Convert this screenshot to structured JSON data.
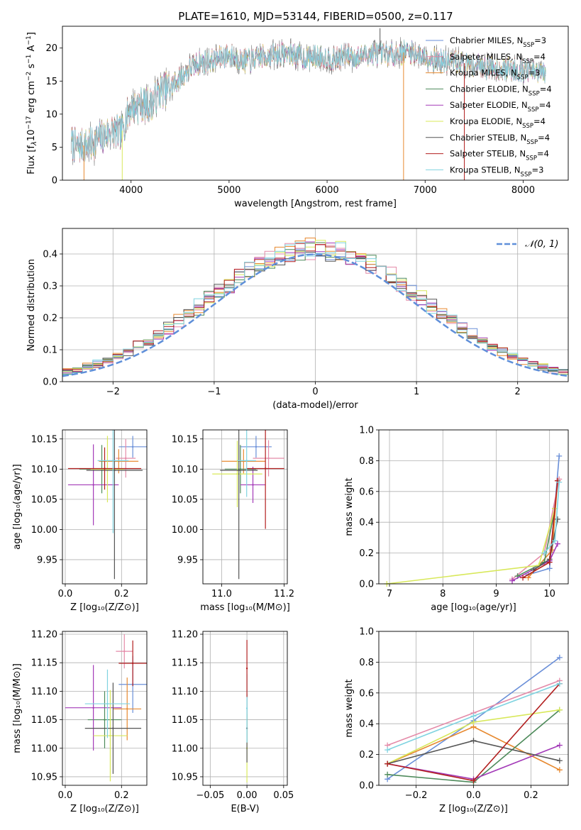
{
  "title": "PLATE=1610, MJD=53144, FIBERID=0500, z=0.117",
  "colors": {
    "chabrier_miles": "#6a8fd8",
    "salpeter_miles": "#e48aa8",
    "kroupa_miles": "#e7892f",
    "chabrier_elodie": "#4d8a5a",
    "salpeter_elodie": "#a33ab8",
    "kroupa_elodie": "#d8e85a",
    "chabrier_stelib": "#555555",
    "salpeter_stelib": "#b21f1f",
    "kroupa_stelib": "#7fd3e0",
    "gauss": "#5f8fd9",
    "grid": "#b0b0b0"
  },
  "chart_data": [
    {
      "type": "line",
      "id": "spectrum",
      "xlabel": "wavelength [Angstrom, rest frame]",
      "ylabel_parts": [
        "Flux [f",
        "λ",
        "10",
        "−17",
        " erg cm",
        "−2",
        " s",
        "−1",
        " A",
        "−1",
        "]"
      ],
      "xlim": [
        3300,
        8460
      ],
      "ylim": [
        0,
        23.3
      ],
      "xticks": [
        4000,
        5000,
        6000,
        7000,
        8000
      ],
      "yticks": [
        0,
        5,
        10,
        15,
        20
      ],
      "grid": false,
      "legend": "top-right",
      "spectrum_outline": [
        [
          3390,
          5.8
        ],
        [
          3450,
          5.0
        ],
        [
          3600,
          5.5
        ],
        [
          3700,
          6.5
        ],
        [
          3800,
          7.5
        ],
        [
          3900,
          7.0
        ],
        [
          3950,
          9.5
        ],
        [
          4000,
          11.0
        ],
        [
          4100,
          11.5
        ],
        [
          4200,
          11.5
        ],
        [
          4300,
          13.5
        ],
        [
          4400,
          14.0
        ],
        [
          4500,
          15.5
        ],
        [
          4600,
          17.0
        ],
        [
          4700,
          17.8
        ],
        [
          4800,
          18.0
        ],
        [
          4900,
          18.5
        ],
        [
          5000,
          19.0
        ],
        [
          5100,
          18.3
        ],
        [
          5200,
          18.0
        ],
        [
          5300,
          18.6
        ],
        [
          5400,
          18.8
        ],
        [
          5500,
          19.0
        ],
        [
          5600,
          19.2
        ],
        [
          5700,
          18.8
        ],
        [
          5800,
          18.5
        ],
        [
          5900,
          18.7
        ],
        [
          6000,
          18.5
        ],
        [
          6100,
          18.3
        ],
        [
          6200,
          19.0
        ],
        [
          6300,
          18.6
        ],
        [
          6400,
          19.0
        ],
        [
          6500,
          19.2
        ],
        [
          6600,
          19.0
        ],
        [
          6700,
          19.1
        ],
        [
          6800,
          19.4
        ],
        [
          6900,
          19.2
        ],
        [
          7000,
          18.7
        ],
        [
          7100,
          18.3
        ],
        [
          7200,
          17.8
        ],
        [
          7300,
          18.0
        ],
        [
          7400,
          17.7
        ],
        [
          7500,
          17.4
        ],
        [
          7600,
          17.2
        ],
        [
          7700,
          17.0
        ],
        [
          7800,
          16.8
        ],
        [
          7900,
          16.9
        ],
        [
          8000,
          16.6
        ],
        [
          8100,
          16.4
        ],
        [
          8230,
          16.0
        ]
      ],
      "dropouts": [
        [
          3520,
          0
        ],
        [
          3910,
          0
        ],
        [
          6780,
          0
        ],
        [
          7400,
          0
        ],
        [
          6540,
          23
        ]
      ],
      "series": [
        {
          "label": "Chabrier MILES, N",
          "n_ssp": "3",
          "color_key": "chabrier_miles"
        },
        {
          "label": "Salpeter MILES, N",
          "n_ssp": "4",
          "color_key": "salpeter_miles"
        },
        {
          "label": "Kroupa MILES, N",
          "n_ssp": "3",
          "color_key": "kroupa_miles"
        },
        {
          "label": "Chabrier ELODIE, N",
          "n_ssp": "4",
          "color_key": "chabrier_elodie"
        },
        {
          "label": "Salpeter ELODIE, N",
          "n_ssp": "4",
          "color_key": "salpeter_elodie"
        },
        {
          "label": "Kroupa ELODIE, N",
          "n_ssp": "4",
          "color_key": "kroupa_elodie"
        },
        {
          "label": "Chabrier STELIB, N",
          "n_ssp": "4",
          "color_key": "chabrier_stelib"
        },
        {
          "label": "Salpeter STELIB, N",
          "n_ssp": "4",
          "color_key": "salpeter_stelib"
        },
        {
          "label": "Kroupa STELIB, N",
          "n_ssp": "3",
          "color_key": "kroupa_stelib"
        }
      ],
      "n_subscript": "SSP"
    },
    {
      "type": "histogram",
      "id": "residuals",
      "xlabel": "(data-model)/error",
      "ylabel": "Normed distribution",
      "xlim": [
        -2.5,
        2.5
      ],
      "ylim": [
        0,
        0.48
      ],
      "xticks": [
        -2,
        -1,
        0,
        1,
        2
      ],
      "xtick_labels": [
        "−2",
        "−1",
        "0",
        "1",
        "2"
      ],
      "yticks": [
        0.0,
        0.1,
        0.2,
        0.3,
        0.4
      ],
      "ytick_labels": [
        "0.0",
        "0.1",
        "0.2",
        "0.3",
        "0.4"
      ],
      "grid": true,
      "bin_width": 0.1,
      "legend": "top-right",
      "gauss_label": "𝒩(0, 1)"
    },
    {
      "type": "scatter",
      "id": "age_vs_Z",
      "xlabel": "Z [log₁₀(Z/Z⊙)]",
      "ylabel": "age  [log₁₀(age/yr)]",
      "xlim": [
        -0.01,
        0.29
      ],
      "ylim": [
        9.91,
        10.165
      ],
      "xticks": [
        0.0,
        0.2
      ],
      "xtick_labels": [
        "0.0",
        "0.2"
      ],
      "yticks": [
        9.95,
        10.0,
        10.05,
        10.1,
        10.15
      ],
      "ytick_labels": [
        "9.95",
        "10.00",
        "10.05",
        "10.10",
        "10.15"
      ],
      "grid": true,
      "points": [
        {
          "color_key": "chabrier_miles",
          "x": 0.24,
          "xerr": 0.05,
          "y": 10.137,
          "yerr": 0.018
        },
        {
          "color_key": "salpeter_miles",
          "x": 0.215,
          "xerr": 0.035,
          "y": 10.118,
          "yerr": 0.032
        },
        {
          "color_key": "kroupa_miles",
          "x": 0.19,
          "xerr": 0.07,
          "y": 10.113,
          "yerr": 0.02
        },
        {
          "color_key": "chabrier_elodie",
          "x": 0.13,
          "xerr": 0.08,
          "y": 10.1,
          "yerr": 0.04
        },
        {
          "color_key": "salpeter_elodie",
          "x": 0.1,
          "xerr": 0.09,
          "y": 10.074,
          "yerr": 0.067
        },
        {
          "color_key": "kroupa_elodie",
          "x": 0.15,
          "xerr": 0.06,
          "y": 10.1,
          "yerr": 0.055
        },
        {
          "color_key": "chabrier_stelib",
          "x": 0.175,
          "xerr": 0.1,
          "y": 10.098,
          "yerr": 0.18
        },
        {
          "color_key": "salpeter_stelib",
          "x": 0.14,
          "xerr": 0.13,
          "y": 10.101,
          "yerr": 0.035
        },
        {
          "color_key": "kroupa_stelib",
          "x": 0.17,
          "xerr": 0.055,
          "y": 10.114,
          "yerr": 0.12
        }
      ]
    },
    {
      "type": "scatter",
      "id": "age_vs_mass",
      "xlabel": "mass [log₁₀(M/M⊙)]",
      "xlim": [
        10.94,
        11.21
      ],
      "ylim": [
        9.91,
        10.165
      ],
      "xticks": [
        11.0,
        11.2
      ],
      "xtick_labels": [
        "11.0",
        "11.2"
      ],
      "yticks": [
        9.95,
        10.0,
        10.05,
        10.1,
        10.15
      ],
      "ytick_labels": [
        "9.95",
        "10.00",
        "10.05",
        "10.10",
        "10.15"
      ],
      "grid": true,
      "points": [
        {
          "color_key": "chabrier_miles",
          "x": 11.11,
          "xerr": 0.05,
          "y": 10.137,
          "yerr": 0.018
        },
        {
          "color_key": "salpeter_miles",
          "x": 11.15,
          "xerr": 0.05,
          "y": 10.118,
          "yerr": 0.03
        },
        {
          "color_key": "kroupa_miles",
          "x": 11.07,
          "xerr": 0.07,
          "y": 10.113,
          "yerr": 0.02
        },
        {
          "color_key": "chabrier_elodie",
          "x": 11.06,
          "xerr": 0.05,
          "y": 10.1,
          "yerr": 0.04
        },
        {
          "color_key": "salpeter_elodie",
          "x": 11.1,
          "xerr": 0.04,
          "y": 10.074,
          "yerr": 0.03
        },
        {
          "color_key": "kroupa_elodie",
          "x": 11.05,
          "xerr": 0.08,
          "y": 10.092,
          "yerr": 0.055
        },
        {
          "color_key": "chabrier_stelib",
          "x": 11.055,
          "xerr": 0.06,
          "y": 10.098,
          "yerr": 0.18
        },
        {
          "color_key": "salpeter_stelib",
          "x": 11.14,
          "xerr": 0.06,
          "y": 10.101,
          "yerr": 0.1
        },
        {
          "color_key": "kroupa_stelib",
          "x": 11.08,
          "xerr": 0.03,
          "y": 10.114,
          "yerr": 0.06
        }
      ]
    },
    {
      "type": "line",
      "id": "weight_vs_age",
      "xlabel": "age  [log₁₀(age/yr)]",
      "ylabel": "mass weight",
      "xlim": [
        6.8,
        10.35
      ],
      "ylim": [
        0,
        1
      ],
      "xticks": [
        7,
        8,
        9,
        10
      ],
      "yticks": [
        0.0,
        0.2,
        0.4,
        0.6,
        0.8,
        1.0
      ],
      "ytick_labels": [
        "0.0",
        "0.2",
        "0.4",
        "0.6",
        "0.8",
        "1.0"
      ],
      "grid": true,
      "series": [
        {
          "color_key": "chabrier_miles",
          "points": [
            [
              9.6,
              0.06
            ],
            [
              10.0,
              0.1
            ],
            [
              10.18,
              0.83
            ]
          ]
        },
        {
          "color_key": "salpeter_miles",
          "points": [
            [
              9.3,
              0.03
            ],
            [
              9.9,
              0.2
            ],
            [
              10.18,
              0.68
            ]
          ]
        },
        {
          "color_key": "kroupa_miles",
          "points": [
            [
              9.6,
              0.04
            ],
            [
              10.05,
              0.22
            ],
            [
              10.15,
              0.67
            ]
          ]
        },
        {
          "color_key": "chabrier_elodie",
          "points": [
            [
              9.4,
              0.05
            ],
            [
              9.9,
              0.14
            ],
            [
              10.1,
              0.49
            ]
          ]
        },
        {
          "color_key": "salpeter_elodie",
          "points": [
            [
              9.3,
              0.02
            ],
            [
              10.0,
              0.15
            ],
            [
              10.15,
              0.26
            ]
          ]
        },
        {
          "color_key": "kroupa_elodie",
          "points": [
            [
              6.95,
              0.0
            ],
            [
              9.8,
              0.12
            ],
            [
              10.1,
              0.49
            ]
          ]
        },
        {
          "color_key": "chabrier_stelib",
          "points": [
            [
              9.7,
              0.09
            ],
            [
              10.0,
              0.16
            ],
            [
              10.15,
              0.42
            ]
          ]
        },
        {
          "color_key": "salpeter_stelib",
          "points": [
            [
              9.5,
              0.04
            ],
            [
              10.0,
              0.14
            ],
            [
              10.15,
              0.67
            ]
          ]
        },
        {
          "color_key": "kroupa_stelib",
          "points": [
            [
              9.9,
              0.2
            ],
            [
              10.1,
              0.28
            ],
            [
              10.18,
              0.66
            ]
          ]
        }
      ]
    },
    {
      "type": "scatter",
      "id": "mass_vs_Z",
      "xlabel": "Z [log₁₀(Z/Z⊙)]",
      "ylabel": "mass [log₁₀(M/M⊙)]",
      "xlim": [
        -0.01,
        0.29
      ],
      "ylim": [
        10.935,
        11.205
      ],
      "xticks": [
        0.0,
        0.2
      ],
      "xtick_labels": [
        "0.0",
        "0.2"
      ],
      "yticks": [
        10.95,
        11.0,
        11.05,
        11.1,
        11.15,
        11.2
      ],
      "ytick_labels": [
        "10.95",
        "11.00",
        "11.05",
        "11.10",
        "11.15",
        "11.20"
      ],
      "grid": true,
      "points": [
        {
          "color_key": "chabrier_miles",
          "x": 0.24,
          "xerr": 0.05,
          "y": 11.112,
          "yerr": 0.05
        },
        {
          "color_key": "salpeter_miles",
          "x": 0.21,
          "xerr": 0.03,
          "y": 11.17,
          "yerr": 0.03
        },
        {
          "color_key": "kroupa_miles",
          "x": 0.22,
          "xerr": 0.05,
          "y": 11.069,
          "yerr": 0.055
        },
        {
          "color_key": "chabrier_elodie",
          "x": 0.14,
          "xerr": 0.06,
          "y": 11.05,
          "yerr": 0.05
        },
        {
          "color_key": "salpeter_elodie",
          "x": 0.1,
          "xerr": 0.1,
          "y": 11.071,
          "yerr": 0.075
        },
        {
          "color_key": "kroupa_elodie",
          "x": 0.16,
          "xerr": 0.06,
          "y": 11.022,
          "yerr": 0.08
        },
        {
          "color_key": "chabrier_stelib",
          "x": 0.17,
          "xerr": 0.1,
          "y": 11.035,
          "yerr": 0.08
        },
        {
          "color_key": "salpeter_stelib",
          "x": 0.24,
          "xerr": 0.05,
          "y": 11.149,
          "yerr": 0.04
        },
        {
          "color_key": "kroupa_stelib",
          "x": 0.15,
          "xerr": 0.08,
          "y": 11.078,
          "yerr": 0.06
        }
      ]
    },
    {
      "type": "scatter",
      "id": "mass_vs_ebv",
      "xlabel": "E(B-V)",
      "xlim": [
        -0.06,
        0.055
      ],
      "ylim": [
        10.935,
        11.205
      ],
      "xticks": [
        -0.05,
        0.0,
        0.05
      ],
      "xtick_labels": [
        "−0.05",
        "0.00",
        "0.05"
      ],
      "yticks": [
        10.95,
        11.0,
        11.05,
        11.1,
        11.15,
        11.2
      ],
      "ytick_labels": [
        "10.95",
        "11.00",
        "11.05",
        "11.10",
        "11.15",
        "11.20"
      ],
      "grid": true,
      "points": [
        {
          "color_key": "kroupa_elodie",
          "x": 0.0,
          "y": 11.0,
          "yerr": 0.06
        },
        {
          "color_key": "chabrier_stelib",
          "x": 0.0,
          "y": 11.035,
          "yerr": 0.06
        },
        {
          "color_key": "kroupa_stelib",
          "x": 0.0,
          "y": 11.07,
          "yerr": 0.06
        },
        {
          "color_key": "salpeter_stelib",
          "x": 0.0,
          "y": 11.14,
          "yerr": 0.05
        }
      ]
    },
    {
      "type": "line",
      "id": "weight_vs_Z",
      "xlabel": "Z [log₁₀(Z/Z⊙)]",
      "ylabel": "mass weight",
      "xlim": [
        -0.33,
        0.33
      ],
      "ylim": [
        0,
        1
      ],
      "xticks": [
        -0.2,
        0.0,
        0.2
      ],
      "xtick_labels": [
        "−0.2",
        "0.0",
        "0.2"
      ],
      "yticks": [
        0.0,
        0.2,
        0.4,
        0.6,
        0.8,
        1.0
      ],
      "ytick_labels": [
        "0.0",
        "0.2",
        "0.4",
        "0.6",
        "0.8",
        "1.0"
      ],
      "grid": true,
      "series": [
        {
          "color_key": "chabrier_miles",
          "points": [
            [
              -0.3,
              0.04
            ],
            [
              0.0,
              0.42
            ],
            [
              0.3,
              0.83
            ]
          ]
        },
        {
          "color_key": "salpeter_miles",
          "points": [
            [
              -0.3,
              0.26
            ],
            [
              0.0,
              0.47
            ],
            [
              0.3,
              0.68
            ]
          ]
        },
        {
          "color_key": "kroupa_miles",
          "points": [
            [
              -0.3,
              0.14
            ],
            [
              0.0,
              0.38
            ],
            [
              0.3,
              0.1
            ]
          ]
        },
        {
          "color_key": "chabrier_elodie",
          "points": [
            [
              -0.3,
              0.07
            ],
            [
              0.0,
              0.02
            ],
            [
              0.3,
              0.49
            ]
          ]
        },
        {
          "color_key": "salpeter_elodie",
          "points": [
            [
              -0.3,
              0.14
            ],
            [
              0.0,
              0.04
            ],
            [
              0.3,
              0.26
            ]
          ]
        },
        {
          "color_key": "kroupa_elodie",
          "points": [
            [
              -0.3,
              0.14
            ],
            [
              0.0,
              0.41
            ],
            [
              0.3,
              0.49
            ]
          ]
        },
        {
          "color_key": "chabrier_stelib",
          "points": [
            [
              -0.3,
              0.14
            ],
            [
              0.0,
              0.29
            ],
            [
              0.3,
              0.16
            ]
          ]
        },
        {
          "color_key": "salpeter_stelib",
          "points": [
            [
              -0.3,
              0.14
            ],
            [
              0.0,
              0.03
            ],
            [
              0.3,
              0.66
            ]
          ]
        },
        {
          "color_key": "kroupa_stelib",
          "points": [
            [
              -0.3,
              0.23
            ],
            [
              0.0,
              0.45
            ],
            [
              0.3,
              0.66
            ]
          ]
        }
      ]
    }
  ]
}
